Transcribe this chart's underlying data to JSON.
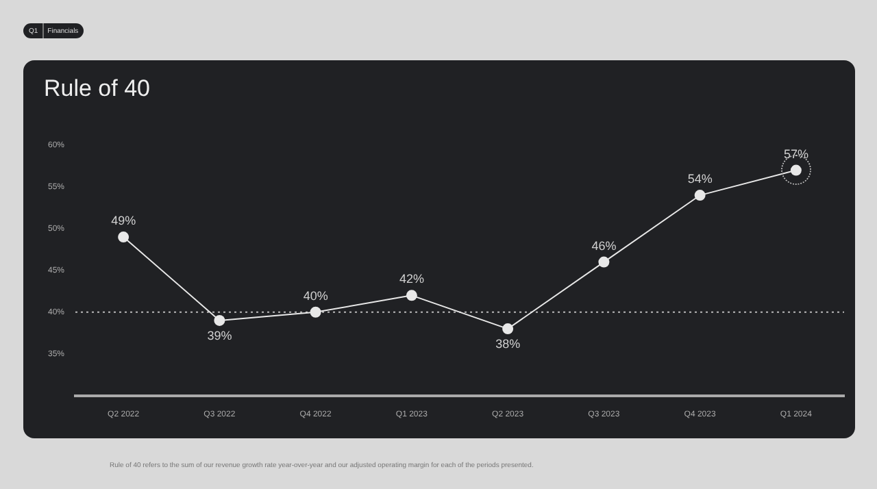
{
  "chart_data": {
    "type": "line",
    "title": "Rule of 40",
    "categories": [
      "Q2 2022",
      "Q3 2022",
      "Q4 2022",
      "Q1 2023",
      "Q2 2023",
      "Q3 2023",
      "Q4 2023",
      "Q1 2024"
    ],
    "values": [
      49,
      39,
      40,
      42,
      38,
      46,
      54,
      57
    ],
    "value_labels": [
      "49%",
      "39%",
      "40%",
      "42%",
      "38%",
      "46%",
      "54%",
      "57%"
    ],
    "color": "#e8e8e8",
    "marker": "circle",
    "line_style": "solid",
    "grid": false,
    "legend": false,
    "ylim": [
      30,
      60
    ],
    "yticks": [
      {
        "value": 35,
        "label": "35%"
      },
      {
        "value": 40,
        "label": "40%"
      },
      {
        "value": 45,
        "label": "45%"
      },
      {
        "value": 50,
        "label": "50%"
      },
      {
        "value": 55,
        "label": "55%"
      },
      {
        "value": 60,
        "label": "60%"
      }
    ],
    "ref_lines": [
      {
        "axis": "y",
        "value": 40,
        "line_style": "dotted",
        "color": "#bbbbbb"
      }
    ],
    "annotations": [
      "Q1",
      "Financials",
      "Rule of 40 refers to the sum of our revenue growth rate year-over-year and our adjusted operating margin for each of the periods presented."
    ]
  }
}
